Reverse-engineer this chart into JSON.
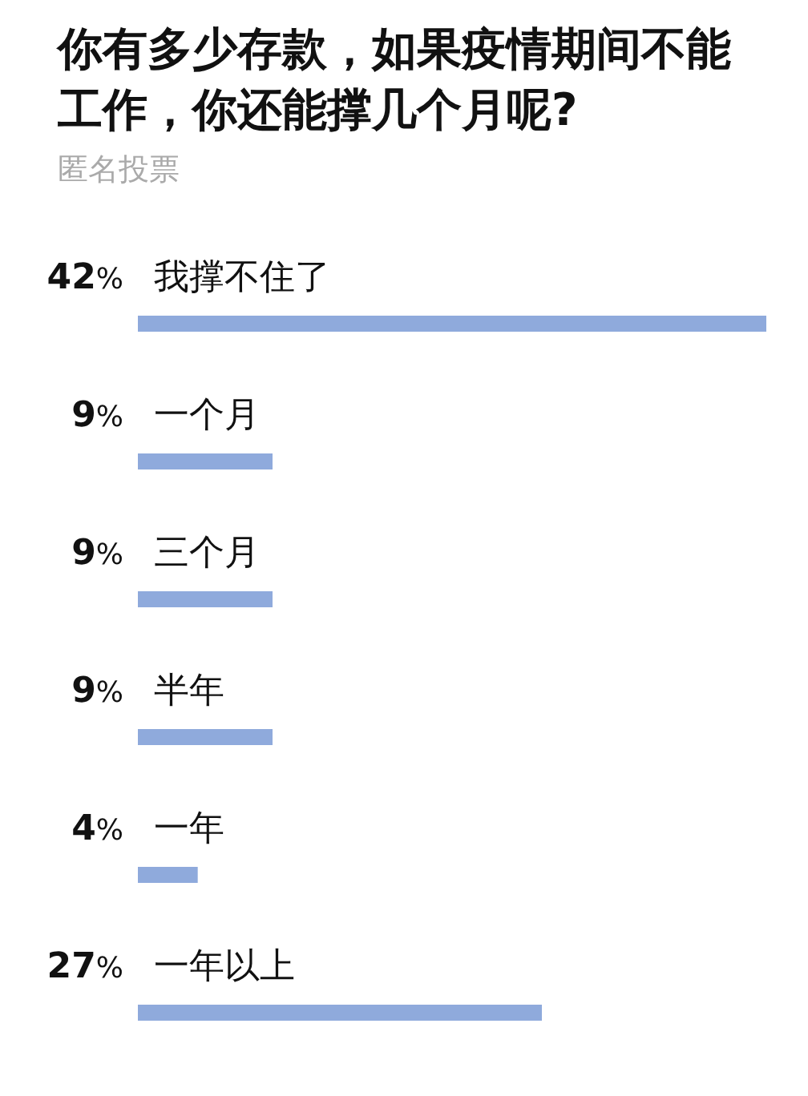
{
  "chart_data": {
    "type": "bar",
    "orientation": "horizontal",
    "title": "你有多少存款，如果疫情期间不能工作，你还能撑几个月呢?",
    "subtitle": "匿名投票",
    "categories": [
      "我撑不住了",
      "一个月",
      "三个月",
      "半年",
      "一年",
      "一年以上"
    ],
    "values": [
      42,
      9,
      9,
      9,
      4,
      27
    ],
    "value_labels": [
      "42%",
      "9%",
      "9%",
      "9%",
      "4%",
      "27%"
    ],
    "color": "#8faadc"
  }
}
